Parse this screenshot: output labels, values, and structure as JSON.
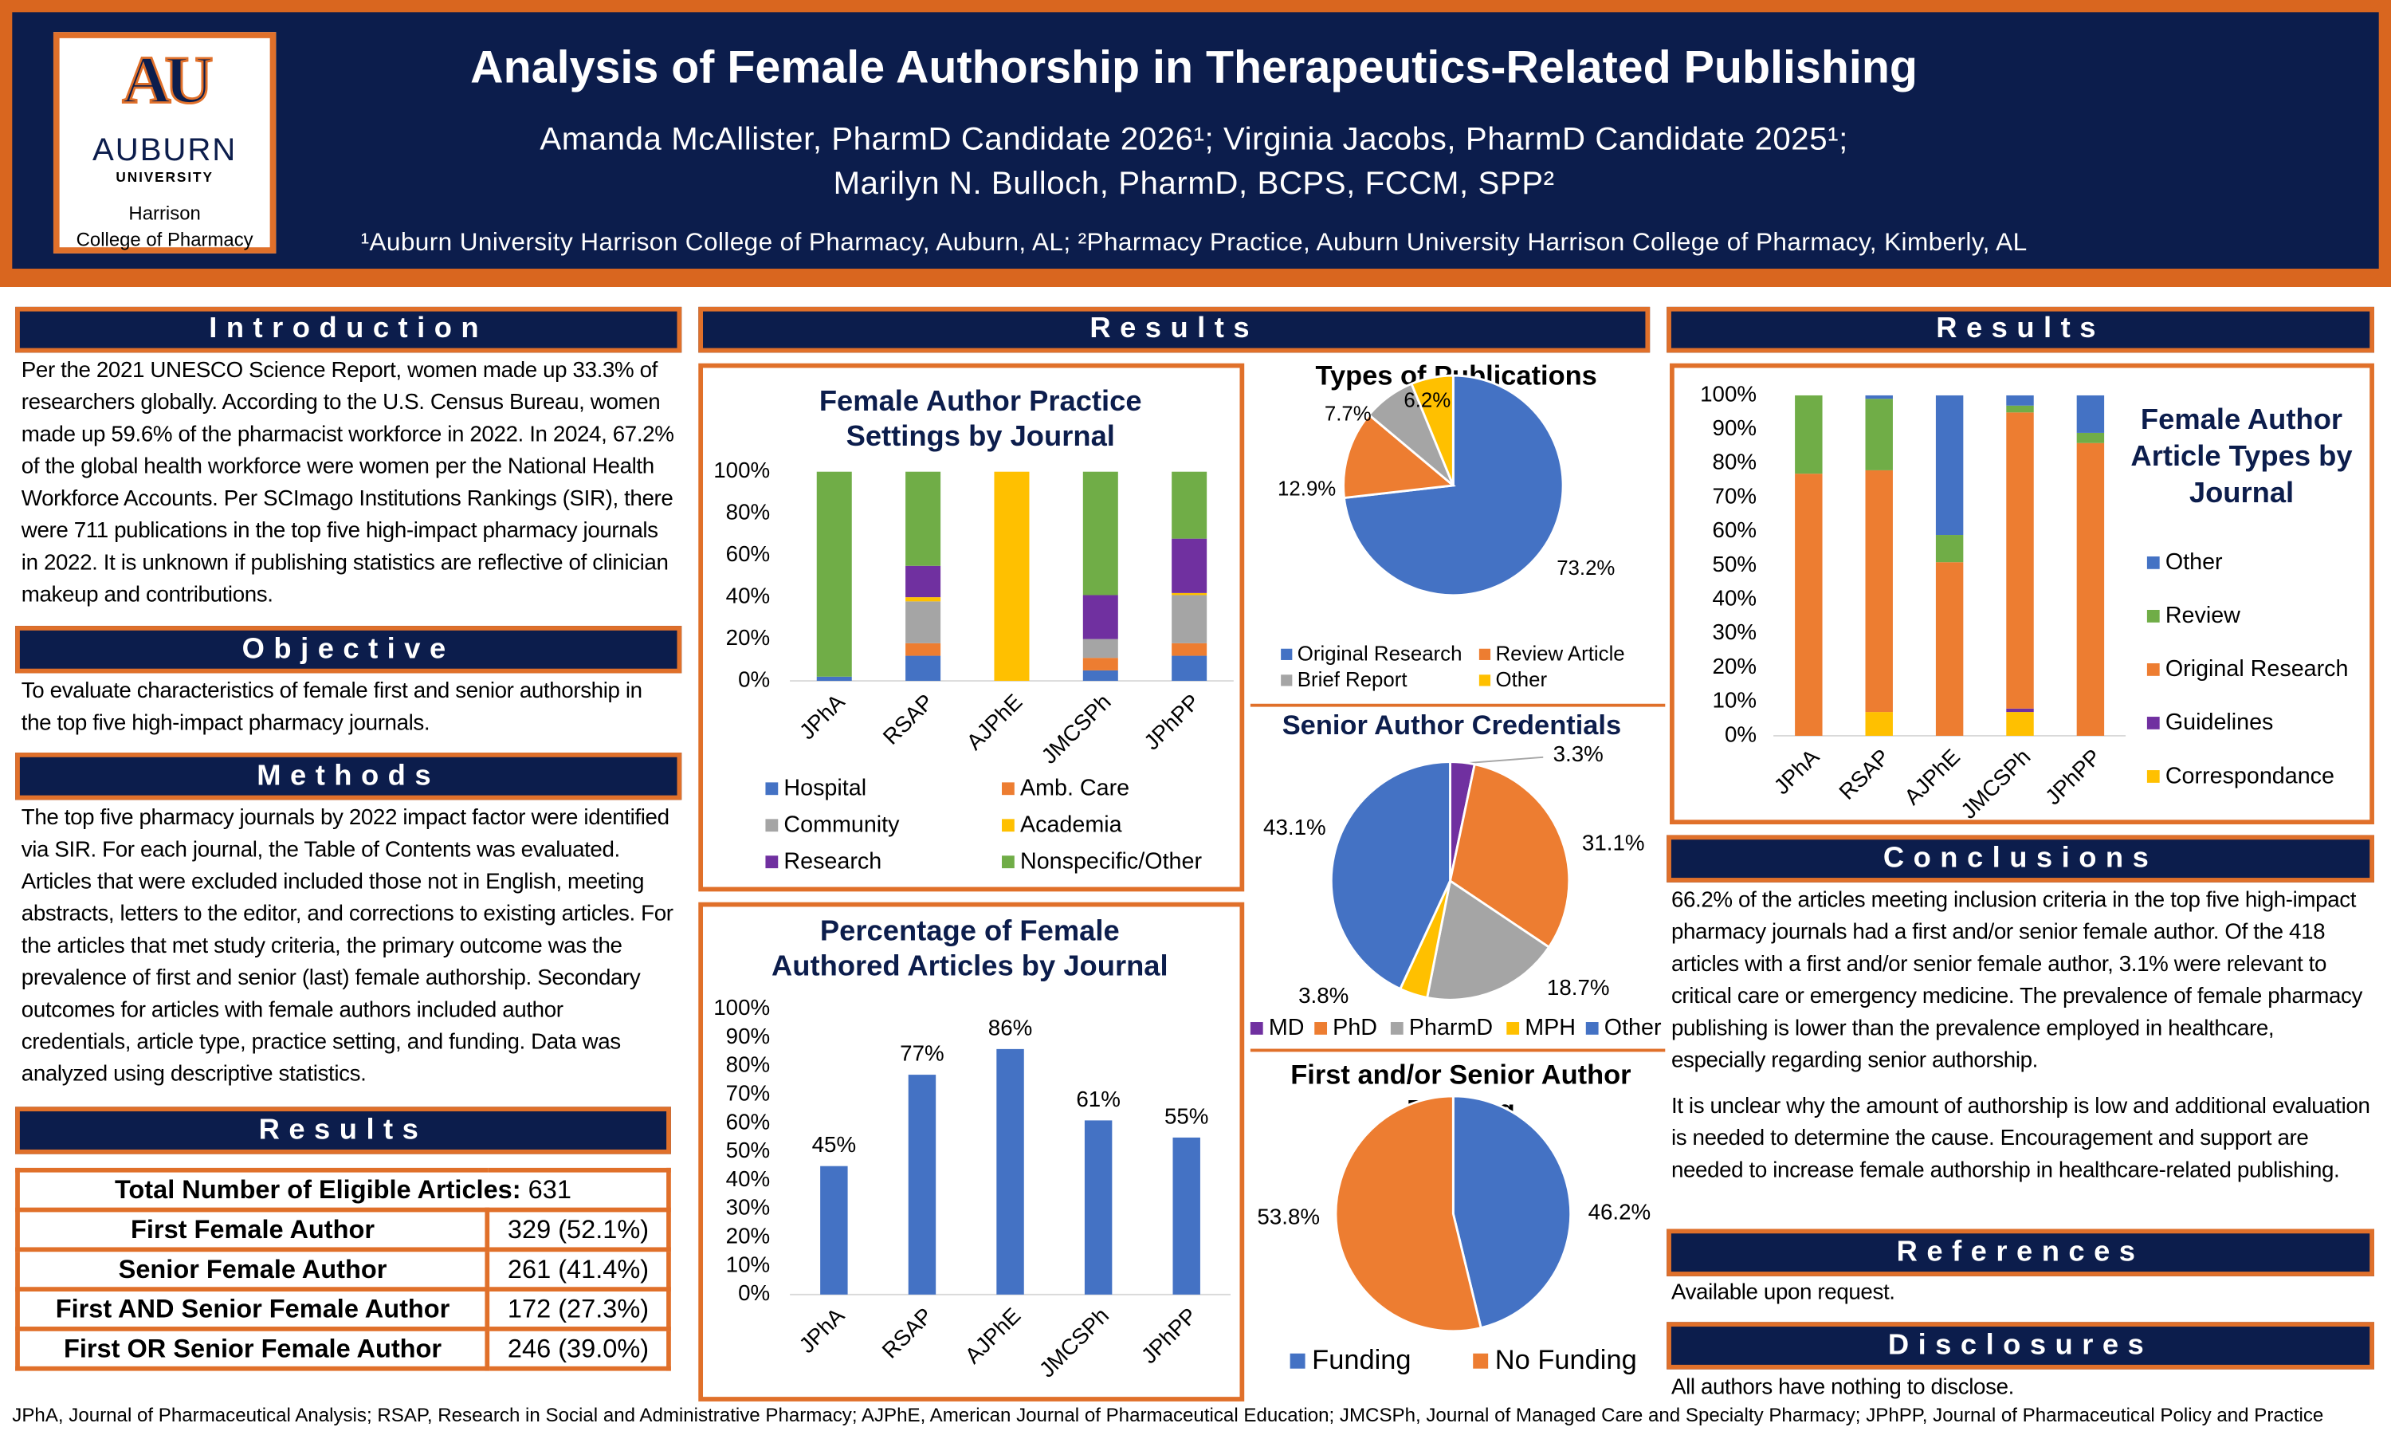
{
  "header": {
    "title": "Analysis of Female Authorship in Therapeutics-Related Publishing",
    "authors_line1": "Amanda McAllister, PharmD Candidate 2026¹; Virginia Jacobs, PharmD Candidate 2025¹;",
    "authors_line2": "Marilyn N. Bulloch, PharmD, BCPS, FCCM, SPP²",
    "affiliations": "¹Auburn University Harrison College of Pharmacy, Auburn, AL; ²Pharmacy Practice, Auburn University Harrison College of Pharmacy, Kimberly, AL",
    "logo": {
      "mark": "AU",
      "name": "AUBURN",
      "sub": "UNIVERSITY",
      "college_line1": "Harrison",
      "college_line2": "College of Pharmacy"
    }
  },
  "introduction": {
    "heading": "Introduction",
    "text": "Per the 2021 UNESCO Science Report, women made up 33.3% of researchers globally. According to the U.S. Census Bureau, women made up 59.6% of the pharmacist workforce in 2022. In 2024, 67.2% of the global health workforce were women per the National Health Workforce Accounts. Per SCImago Institutions Rankings (SIR), there were 711 publications in the top five high-impact pharmacy journals in 2022. It is unknown if publishing statistics are reflective of clinician makeup and contributions."
  },
  "objective": {
    "heading": "Objective",
    "text": "To evaluate characteristics of female first and senior authorship in the top five high-impact pharmacy journals."
  },
  "methods": {
    "heading": "Methods",
    "text": "The top five pharmacy journals by 2022 impact factor were identified via SIR. For each journal, the Table of Contents was evaluated. Articles that were excluded included those not in English, meeting abstracts, letters to the editor, and corrections to existing articles. For the articles that met study criteria, the primary outcome was the prevalence of first and senior (last) female authorship. Secondary outcomes for articles with female authors included author credentials, article type, practice setting, and funding. Data was analyzed using descriptive statistics."
  },
  "results_left": {
    "heading": "Results"
  },
  "results_middle": {
    "heading": "Results"
  },
  "results_right": {
    "heading": "Results"
  },
  "table": {
    "total_label": "Total Number of Eligible Articles:",
    "total_value": 631,
    "rows": [
      [
        "First Female Author",
        "329 (52.1%)"
      ],
      [
        "Senior Female Author",
        "261 (41.4%)"
      ],
      [
        "First AND Senior Female Author",
        "172 (27.3%)"
      ],
      [
        "First OR Senior Female Author",
        "246 (39.0%)"
      ]
    ]
  },
  "conclusions": {
    "heading": "Conclusions",
    "paragraphs": [
      "66.2% of the articles meeting inclusion criteria in the top five high-impact pharmacy journals had a first and/or senior female author. Of the 418 articles with a first and/or senior female author, 3.1% were relevant to critical care or emergency medicine. The prevalence of female pharmacy publishing is lower than the prevalence employed in healthcare, especially regarding senior authorship.",
      "It is unclear why the amount of authorship is low and additional evaluation is needed to determine the cause. Encouragement and support are needed to increase female authorship in healthcare-related publishing."
    ]
  },
  "references": {
    "heading": "References",
    "text": "Available upon request."
  },
  "disclosures": {
    "heading": "Disclosures",
    "text": "All authors have nothing to disclose."
  },
  "footer": "JPhA, Journal of Pharmaceutical Analysis; RSAP, Research in Social and Administrative Pharmacy; AJPhE, American Journal of Pharmaceutical Education; JMCSPh, Journal of Managed Care and Specialty Pharmacy; JPhPP, Journal of Pharmaceutical Policy and Practice",
  "chart_data": [
    {
      "type": "stacked_bar",
      "title": "Female Author Practice Settings by Journal",
      "legend": "bottom",
      "categories": [
        "JPhA",
        "RSAP",
        "AJPhE",
        "JMCSPh",
        "JPhPP"
      ],
      "series": [
        {
          "name": "Hospital",
          "color": "#4472c4",
          "values": [
            2,
            12,
            0,
            5,
            12
          ]
        },
        {
          "name": "Amb. Care",
          "color": "#ed7d31",
          "values": [
            0,
            6,
            0,
            6,
            6
          ]
        },
        {
          "name": "Community",
          "color": "#a5a5a5",
          "values": [
            0,
            20,
            0,
            9,
            23
          ]
        },
        {
          "name": "Academia",
          "color": "#ffc000",
          "values": [
            0,
            2,
            100,
            0,
            1
          ]
        },
        {
          "name": "Research",
          "color": "#7030a0",
          "values": [
            0,
            15,
            0,
            21,
            26
          ]
        },
        {
          "name": "Nonspecific/Other",
          "color": "#70ad47",
          "values": [
            98,
            45,
            0,
            59,
            32
          ]
        }
      ],
      "ylim": [
        0,
        100
      ],
      "yticks": [
        {
          "value": 0,
          "label": "0%"
        },
        {
          "value": 20,
          "label": "20%"
        },
        {
          "value": 40,
          "label": "40%"
        },
        {
          "value": 60,
          "label": "60%"
        },
        {
          "value": 80,
          "label": "80%"
        },
        {
          "value": 100,
          "label": "100%"
        }
      ]
    },
    {
      "type": "bar",
      "title": "Percentage of Female Authored Articles by Journal",
      "categories": [
        "JPhA",
        "RSAP",
        "AJPhE",
        "JMCSPh",
        "JPhPP"
      ],
      "values": [
        45,
        77,
        86,
        61,
        55
      ],
      "value_labels": [
        "45%",
        "77%",
        "86%",
        "61%",
        "55%"
      ],
      "color": "#4472c4",
      "ylim": [
        0,
        100
      ],
      "yticks": [
        {
          "value": 0,
          "label": "0%"
        },
        {
          "value": 10,
          "label": "10%"
        },
        {
          "value": 20,
          "label": "20%"
        },
        {
          "value": 30,
          "label": "30%"
        },
        {
          "value": 40,
          "label": "40%"
        },
        {
          "value": 50,
          "label": "50%"
        },
        {
          "value": 60,
          "label": "60%"
        },
        {
          "value": 70,
          "label": "70%"
        },
        {
          "value": 80,
          "label": "80%"
        },
        {
          "value": 90,
          "label": "90%"
        },
        {
          "value": 100,
          "label": "100%"
        }
      ]
    },
    {
      "type": "pie",
      "title": "Types of Publications",
      "categories": [
        "Original Research",
        "Review Article",
        "Brief Report",
        "Other"
      ],
      "values": [
        73.2,
        12.9,
        7.7,
        6.2
      ],
      "value_labels": [
        "73.2%",
        "12.9%",
        "7.7%",
        "6.2%"
      ],
      "colors": [
        "#4472c4",
        "#ed7d31",
        "#a5a5a5",
        "#ffc000"
      ]
    },
    {
      "type": "pie",
      "title": "Senior Author Credentials",
      "categories": [
        "MD",
        "PhD",
        "PharmD",
        "MPH",
        "Other"
      ],
      "values": [
        3.3,
        31.1,
        18.7,
        3.8,
        43.1
      ],
      "value_labels": [
        "3.3%",
        "31.1%",
        "18.7%",
        "3.8%",
        "43.1%"
      ],
      "colors": [
        "#7030a0",
        "#ed7d31",
        "#a5a5a5",
        "#ffc000",
        "#4472c4"
      ]
    },
    {
      "type": "pie",
      "title": "First and/or Senior Author Funding",
      "categories": [
        "Funding",
        "No Funding"
      ],
      "values": [
        46.2,
        53.8
      ],
      "value_labels": [
        "46.2%",
        "53.8%"
      ],
      "colors": [
        "#4472c4",
        "#ed7d31"
      ]
    },
    {
      "type": "stacked_bar",
      "title": "Female Author Article Types by Journal",
      "legend": "right",
      "categories": [
        "JPhA",
        "RSAP",
        "AJPhE",
        "JMCSPh",
        "JPhPP"
      ],
      "series": [
        {
          "name": "Correspondance",
          "color": "#ffc000",
          "values": [
            0,
            7,
            0,
            7,
            0
          ]
        },
        {
          "name": "Guidelines",
          "color": "#7030a0",
          "values": [
            0,
            0,
            0,
            1,
            0
          ]
        },
        {
          "name": "Original Research",
          "color": "#ed7d31",
          "values": [
            77,
            71,
            51,
            87,
            86
          ]
        },
        {
          "name": "Review",
          "color": "#70ad47",
          "values": [
            23,
            21,
            8,
            2,
            3
          ]
        },
        {
          "name": "Other",
          "color": "#4472c4",
          "values": [
            0,
            1,
            41,
            3,
            11
          ]
        }
      ],
      "ylim": [
        0,
        100
      ],
      "yticks": [
        {
          "value": 0,
          "label": "0%"
        },
        {
          "value": 10,
          "label": "10%"
        },
        {
          "value": 20,
          "label": "20%"
        },
        {
          "value": 30,
          "label": "30%"
        },
        {
          "value": 40,
          "label": "40%"
        },
        {
          "value": 50,
          "label": "50%"
        },
        {
          "value": 60,
          "label": "60%"
        },
        {
          "value": 70,
          "label": "70%"
        },
        {
          "value": 80,
          "label": "80%"
        },
        {
          "value": 90,
          "label": "90%"
        },
        {
          "value": 100,
          "label": "100%"
        }
      ]
    }
  ]
}
